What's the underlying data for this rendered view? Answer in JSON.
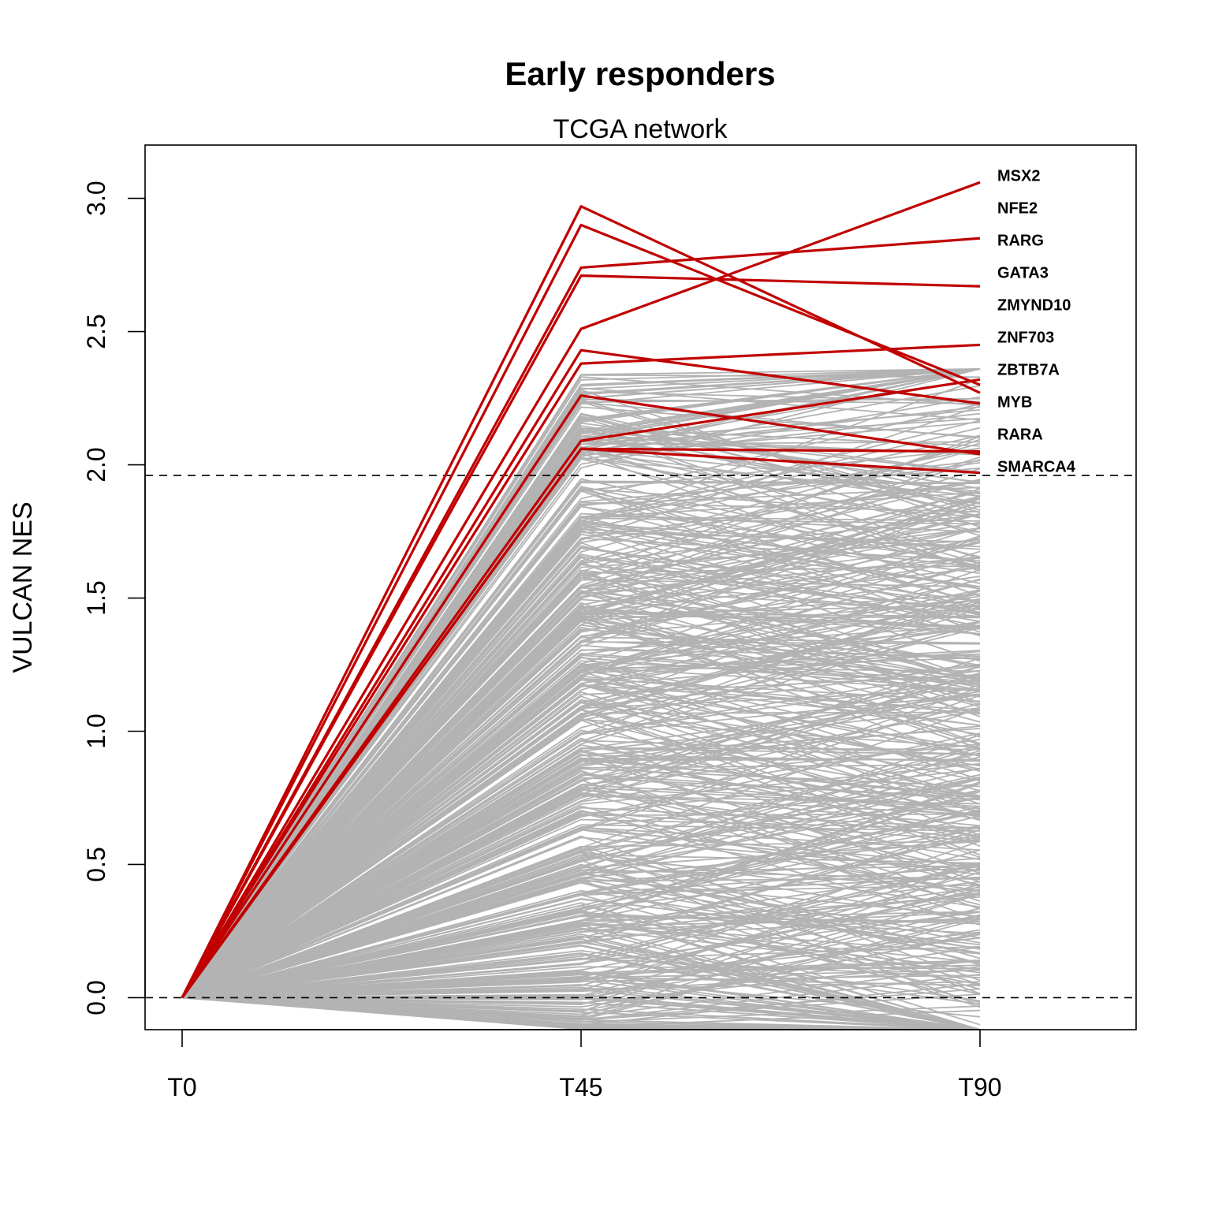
{
  "chart_data": {
    "type": "line",
    "title": "Early responders",
    "subtitle": "TCGA network",
    "xlabel": "",
    "ylabel": "VULCAN NES",
    "categories": [
      "T0",
      "T45",
      "T90"
    ],
    "ylim": [
      -0.12,
      3.2
    ],
    "yticks": [
      0.0,
      0.5,
      1.0,
      1.5,
      2.0,
      2.5,
      3.0
    ],
    "ytick_labels": [
      "0.0",
      "0.5",
      "1.0",
      "1.5",
      "2.0",
      "2.5",
      "3.0"
    ],
    "reference_lines": [
      0.0,
      1.96
    ],
    "grid": false,
    "colors": {
      "highlight": "#c00000",
      "background": "#b3b3b3",
      "reference": "#000000"
    },
    "highlight_series": [
      {
        "values": [
          0,
          2.51,
          3.06
        ]
      },
      {
        "values": [
          0,
          2.74,
          2.85
        ]
      },
      {
        "values": [
          0,
          2.71,
          2.67
        ]
      },
      {
        "values": [
          0,
          2.38,
          2.45
        ]
      },
      {
        "values": [
          0,
          2.97,
          2.27
        ]
      },
      {
        "values": [
          0,
          2.09,
          2.32
        ]
      },
      {
        "values": [
          0,
          2.9,
          2.3
        ]
      },
      {
        "values": [
          0,
          2.43,
          2.23
        ]
      },
      {
        "values": [
          0,
          2.06,
          2.05
        ]
      },
      {
        "values": [
          0,
          2.26,
          2.04
        ]
      },
      {
        "values": [
          0,
          2.06,
          1.97
        ]
      }
    ],
    "gene_labels": [
      "MSX2",
      "NFE2",
      "RARG",
      "GATA3",
      "ZMYND10",
      "ZNF703",
      "ZBTB7A",
      "MYB",
      "RARA",
      "SMARCA4"
    ],
    "background_series": {
      "count": 520,
      "t0": 0,
      "t45_range": [
        -0.12,
        2.35
      ],
      "t90_range": [
        -0.12,
        2.36
      ]
    }
  }
}
